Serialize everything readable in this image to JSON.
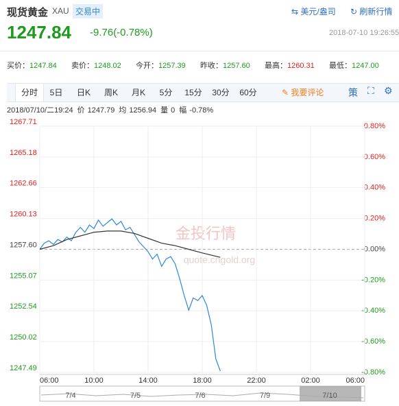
{
  "header": {
    "title": "现货黄金",
    "code": "XAU",
    "status": "交易中",
    "unit": "美元/盎司",
    "refresh": "刷新行情",
    "price": "1247.84",
    "change": "-9.76(-0.78%)",
    "datetime": "2018-07-10 19:26:55"
  },
  "stats": [
    {
      "label": "买价：",
      "value": "1247.84"
    },
    {
      "label": "卖价：",
      "value": "1248.02"
    },
    {
      "label": "今开：",
      "value": "1257.39"
    },
    {
      "label": "昨收：",
      "value": "1257.60"
    },
    {
      "label": "最高：",
      "value": "1260.31"
    },
    {
      "label": "最低：",
      "value": "1247.00"
    }
  ],
  "tabs": [
    "分时",
    "5日",
    "日K",
    "周K",
    "月K",
    "5分",
    "15分",
    "30分",
    "60分"
  ],
  "comment": "我要评论",
  "strategy": "策",
  "info": {
    "time": "2018/07/10/二19:24",
    "items": [
      {
        "label": "价",
        "value": "1247.79"
      },
      {
        "label": "均",
        "value": "1256.94"
      },
      {
        "label": "量",
        "value": "0"
      },
      {
        "label": "幅",
        "value": "-0.78%"
      }
    ]
  },
  "watermark": {
    "name": "金投行情",
    "site": "quote.cngold.org"
  },
  "navigator": {
    "labels": [
      "7/4",
      "7/5",
      "7/6",
      "7/9",
      "7/10"
    ]
  },
  "chart_data": {
    "type": "line",
    "up_color": "#e0201f",
    "down_color": "#1f9a1f",
    "flat_color": "#444444",
    "grid": true,
    "baseline": 1257.6,
    "xlim": [
      0,
      24
    ],
    "xticks": [
      {
        "value": 0,
        "label": "06:00"
      },
      {
        "value": 4,
        "label": "10:00"
      },
      {
        "value": 8,
        "label": "14:00"
      },
      {
        "value": 12,
        "label": "18:00"
      },
      {
        "value": 16,
        "label": "22:00"
      },
      {
        "value": 20,
        "label": "02:00"
      },
      {
        "value": 24,
        "label": "06:00"
      }
    ],
    "ylim": [
      1247.49,
      1267.71
    ],
    "yticks": [
      1267.71,
      1265.18,
      1262.66,
      1260.13,
      {
        "value": 1257.6,
        "label": "1257.60"
      },
      1255.07,
      1252.54,
      1250.02,
      1247.49
    ],
    "y2lim": [
      -0.8,
      0.8
    ],
    "y2ticks": [
      {
        "value": 0.8,
        "label": "0.80%"
      },
      {
        "value": 0.6,
        "label": "0.60%"
      },
      {
        "value": 0.4,
        "label": "0.40%"
      },
      {
        "value": 0.2,
        "label": "0.20%"
      },
      {
        "value": 0,
        "label": "0.00%"
      },
      {
        "value": -0.2,
        "label": "-0.20%"
      },
      {
        "value": -0.4,
        "label": "-0.40%"
      },
      {
        "value": -0.6,
        "label": "-0.60%"
      },
      {
        "value": -0.8,
        "label": "-0.80%"
      }
    ],
    "series": [
      {
        "name": "价",
        "color": "#2f86d6",
        "x": [
          0,
          0.33,
          0.67,
          1,
          1.33,
          1.67,
          2,
          2.33,
          2.67,
          3,
          3.33,
          3.67,
          4,
          4.33,
          4.67,
          5,
          5.33,
          5.67,
          6,
          6.33,
          6.67,
          7,
          7.33,
          7.67,
          8,
          8.33,
          8.67,
          9,
          9.33,
          9.67,
          10,
          10.33,
          10.67,
          11,
          11.33,
          11.67,
          12,
          12.33,
          12.67,
          13,
          13.33
        ],
        "values": [
          1257.6,
          1258.1,
          1258.3,
          1258.0,
          1258.4,
          1258.2,
          1258.6,
          1258.3,
          1259.0,
          1259.4,
          1259.0,
          1259.6,
          1259.3,
          1260.0,
          1259.5,
          1259.8,
          1260.1,
          1259.6,
          1259.9,
          1259.2,
          1259.4,
          1258.8,
          1258.2,
          1257.8,
          1257.4,
          1256.8,
          1257.2,
          1256.2,
          1256.8,
          1257.0,
          1256.4,
          1255.2,
          1253.8,
          1252.6,
          1253.6,
          1253.4,
          1253.8,
          1253.0,
          1251.4,
          1248.6,
          1247.6
        ]
      },
      {
        "name": "均",
        "color": "#333333",
        "x": [
          0,
          1,
          2,
          3,
          4,
          5,
          6,
          7,
          8,
          9,
          10,
          11,
          12,
          13.33
        ],
        "values": [
          1257.6,
          1257.9,
          1258.4,
          1258.7,
          1259.0,
          1259.1,
          1259.1,
          1258.9,
          1258.5,
          1258.1,
          1257.9,
          1257.6,
          1257.3,
          1256.94
        ]
      }
    ]
  }
}
